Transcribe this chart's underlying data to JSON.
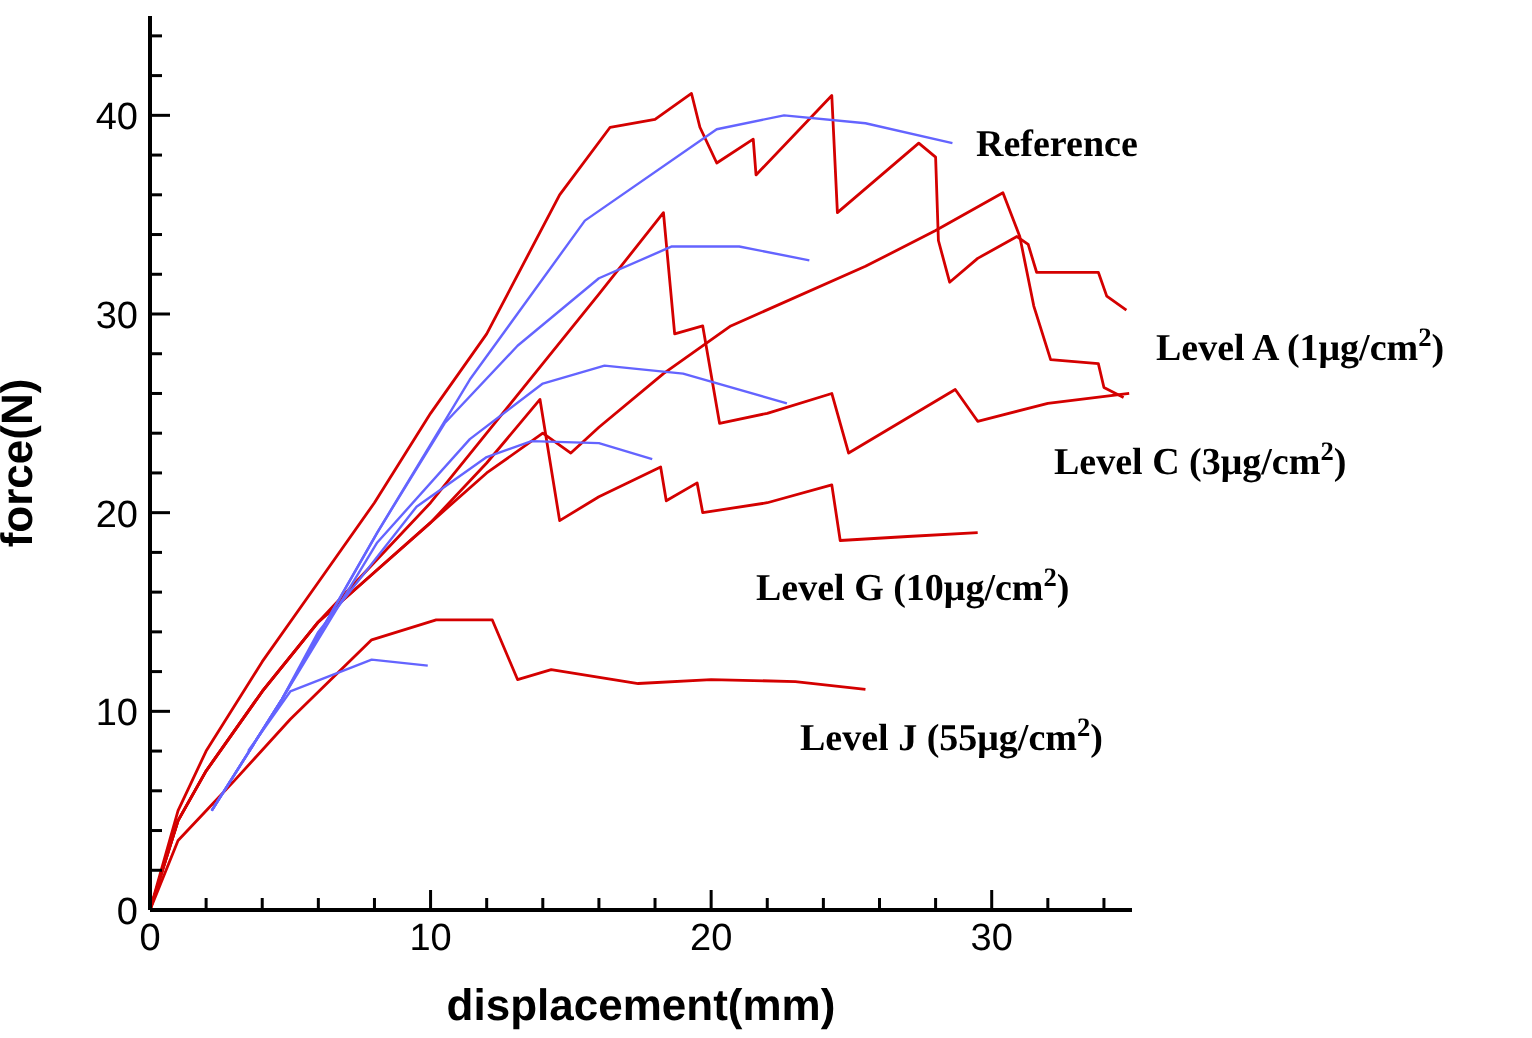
{
  "chart_data": {
    "type": "line",
    "xlabel": "displacement(mm)",
    "ylabel": "force(N)",
    "xlim": [
      0,
      35
    ],
    "ylim": [
      0,
      45
    ],
    "xticks": [
      0,
      {
        "value": 2,
        "label": null
      },
      {
        "value": 4,
        "label": null
      },
      {
        "value": 6,
        "label": null
      },
      {
        "value": 8,
        "label": null
      },
      10,
      {
        "value": 12,
        "label": null
      },
      {
        "value": 14,
        "label": null
      },
      {
        "value": 16,
        "label": null
      },
      {
        "value": 18,
        "label": null
      },
      20,
      {
        "value": 22,
        "label": null
      },
      {
        "value": 24,
        "label": null
      },
      {
        "value": 26,
        "label": null
      },
      {
        "value": 28,
        "label": null
      },
      30,
      {
        "value": 32,
        "label": null
      },
      {
        "value": 34,
        "label": null
      }
    ],
    "yticks": [
      0,
      {
        "value": 2,
        "label": null
      },
      {
        "value": 4,
        "label": null
      },
      {
        "value": 6,
        "label": null
      },
      {
        "value": 8,
        "label": null
      },
      10,
      {
        "value": 12,
        "label": null
      },
      {
        "value": 14,
        "label": null
      },
      {
        "value": 16,
        "label": null
      },
      {
        "value": 18,
        "label": null
      },
      20,
      {
        "value": 22,
        "label": null
      },
      {
        "value": 24,
        "label": null
      },
      {
        "value": 26,
        "label": null
      },
      {
        "value": 28,
        "label": null
      },
      30,
      {
        "value": 32,
        "label": null
      },
      {
        "value": 34,
        "label": null
      },
      {
        "value": 36,
        "label": null
      },
      {
        "value": 38,
        "label": null
      },
      40,
      {
        "value": 42,
        "label": null
      },
      {
        "value": 44,
        "label": null
      }
    ],
    "grid": false,
    "legend": false,
    "marker": "none",
    "line_style": "solid",
    "series": [
      {
        "name": "Reference",
        "color": "#d40000",
        "x": [
          0,
          1,
          2,
          4,
          6,
          8,
          10,
          12,
          14.6,
          16.4,
          18,
          19.3,
          19.6,
          20.2,
          21.5,
          21.6,
          24.3,
          24.5,
          27.4,
          28,
          28.1,
          28.5,
          29.5,
          30.9,
          31.3,
          31.6,
          33.8,
          34.1,
          34.8
        ],
        "values": [
          0,
          5,
          8,
          12.5,
          16.5,
          20.5,
          25,
          29,
          36,
          39.4,
          39.8,
          41.1,
          39.4,
          37.6,
          38.8,
          37,
          41,
          35.1,
          38.6,
          37.9,
          33.7,
          31.6,
          32.8,
          33.9,
          33.5,
          32.1,
          32.1,
          30.9,
          30.2
        ]
      },
      {
        "name": "Level A (1μg/cm$^{2}$)",
        "color": "#d40000",
        "x": [
          0,
          1,
          2,
          4,
          6,
          8,
          10,
          12,
          14,
          15,
          16,
          18.3,
          20.7,
          25.5,
          28,
          30.4,
          31,
          31.5,
          32.1,
          33.8,
          34,
          34.7
        ],
        "values": [
          0,
          4.5,
          7,
          11,
          14.5,
          17,
          19.5,
          22,
          24,
          23,
          24.3,
          27,
          29.4,
          32.4,
          34.2,
          36.1,
          33.9,
          30.4,
          27.7,
          27.5,
          26.3,
          25.8
        ]
      },
      {
        "name": "Level C (3μg/cm$^{2}$)",
        "color": "#d40000",
        "x": [
          0,
          1,
          2,
          4,
          6,
          8,
          10,
          12,
          14,
          16,
          18.3,
          18.7,
          19.7,
          20.3,
          22,
          24.3,
          24.9,
          28.7,
          29.5,
          32,
          34.9
        ],
        "values": [
          0,
          4.5,
          7,
          11,
          14.5,
          17.5,
          20.5,
          24,
          27.5,
          31,
          35.1,
          29,
          29.4,
          24.5,
          25,
          26,
          23,
          26.2,
          24.6,
          25.5,
          26
        ]
      },
      {
        "name": "Level G (10μg/cm$^{2}$)",
        "color": "#d40000",
        "x": [
          0,
          1,
          2,
          4,
          6,
          8,
          10,
          12,
          13.9,
          14.6,
          16,
          18.2,
          18.4,
          19.5,
          19.7,
          22,
          24.3,
          24.6,
          27,
          29.5
        ],
        "values": [
          0,
          4.5,
          7,
          11,
          14.5,
          17,
          19.5,
          22.5,
          25.7,
          19.6,
          20.8,
          22.3,
          20.6,
          21.5,
          20,
          20.5,
          21.4,
          18.6,
          18.8,
          19
        ]
      },
      {
        "name": "Level J (55μg/cm$^{2}$)",
        "color": "#d40000",
        "x": [
          0,
          1,
          2,
          3,
          5,
          7.9,
          10.2,
          12.2,
          13.1,
          14.3,
          17.4,
          20,
          23,
          25.5
        ],
        "values": [
          0,
          3.5,
          5,
          6.5,
          9.6,
          13.6,
          14.6,
          14.6,
          11.6,
          12.1,
          11.4,
          11.6,
          11.5,
          11.1
        ]
      },
      {
        "color": "#6464ff",
        "x": [
          2.2,
          4.7,
          8.1,
          11.4,
          15.5,
          20.2,
          22.6,
          25.5,
          28.6
        ],
        "values": [
          5,
          10.6,
          19,
          26.7,
          34.7,
          39.3,
          40,
          39.6,
          38.6
        ]
      },
      {
        "color": "#6464ff",
        "x": [
          2.2,
          4.7,
          8.1,
          10.5,
          13.1,
          16,
          18.6,
          21,
          23.5
        ],
        "values": [
          5,
          10.6,
          19,
          24.5,
          28.4,
          31.8,
          33.4,
          33.4,
          32.7
        ]
      },
      {
        "color": "#6464ff",
        "x": [
          2.2,
          4.7,
          8.1,
          11.4,
          14,
          16.2,
          19,
          22.7
        ],
        "values": [
          5,
          10.6,
          18.5,
          23.7,
          26.5,
          27.4,
          27,
          25.5
        ]
      },
      {
        "color": "#6464ff",
        "x": [
          2.2,
          4.7,
          6,
          9.5,
          12,
          13.6,
          16,
          17.9
        ],
        "values": [
          5,
          10.6,
          14,
          20.3,
          22.8,
          23.6,
          23.5,
          22.7
        ]
      },
      {
        "color": "#6464ff",
        "x": [
          3.5,
          5,
          7.9,
          9.9
        ],
        "values": [
          8,
          11,
          12.6,
          12.3
        ]
      }
    ]
  }
}
